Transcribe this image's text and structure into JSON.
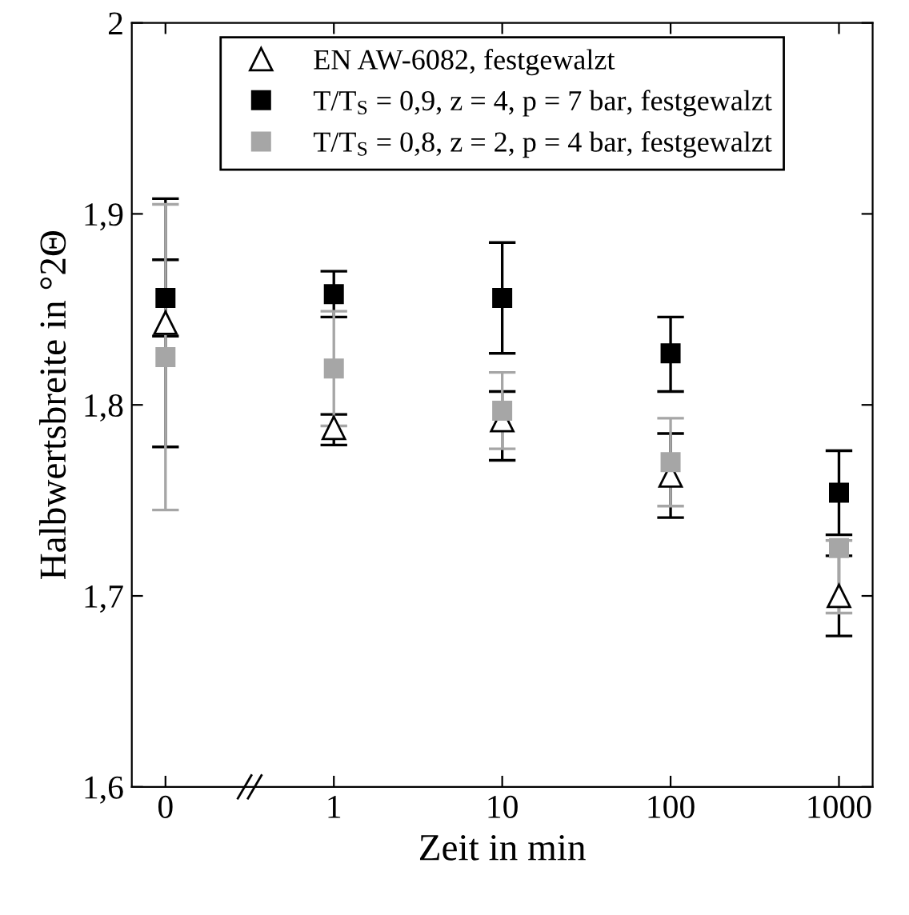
{
  "chart_data": {
    "type": "scatter",
    "xlabel": "Zeit in min",
    "ylabel": "Halbwertsbreite in °2Θ",
    "categories": [
      "0",
      "1",
      "10",
      "100",
      "1000"
    ],
    "series": [
      {
        "name": "EN AW-6082, festgewalzt",
        "color": "#000000",
        "marker": "triangle",
        "values": [
          1.843,
          1.788,
          1.792,
          1.763,
          1.7
        ],
        "errors": [
          [
            1.778,
            1.908
          ],
          [
            1.779,
            1.795
          ],
          [
            1.771,
            1.807
          ],
          [
            1.741,
            1.785
          ],
          [
            1.679,
            1.721
          ]
        ]
      },
      {
        "name": "T/T$_{S}$ = 0,9, z = 4, p = 7 bar, festgewalzt",
        "color": "#000000",
        "marker": "square",
        "values": [
          1.856,
          1.858,
          1.856,
          1.827,
          1.754
        ],
        "errors": [
          [
            1.836,
            1.876
          ],
          [
            1.846,
            1.87
          ],
          [
            1.827,
            1.885
          ],
          [
            1.807,
            1.846
          ],
          [
            1.732,
            1.776
          ]
        ]
      },
      {
        "name": "T/T$_{S}$ = 0,8, z = 2, p = 4 bar, festgewalzt",
        "color": "#a6a6a6",
        "marker": "square",
        "values": [
          1.825,
          1.819,
          1.797,
          1.77,
          1.725
        ],
        "errors": [
          [
            1.745,
            1.905
          ],
          [
            1.789,
            1.849
          ],
          [
            1.777,
            1.817
          ],
          [
            1.747,
            1.793
          ],
          [
            1.691,
            1.729
          ]
        ]
      }
    ],
    "ylim": [
      1.6,
      2
    ],
    "yticks": [
      {
        "value": 1.6,
        "label": "1,6"
      },
      {
        "value": 1.7,
        "label": "1,7"
      },
      {
        "value": 1.8,
        "label": "1,8"
      },
      {
        "value": 1.9,
        "label": "1,9"
      },
      2
    ],
    "grid": false,
    "legend": "top"
  }
}
